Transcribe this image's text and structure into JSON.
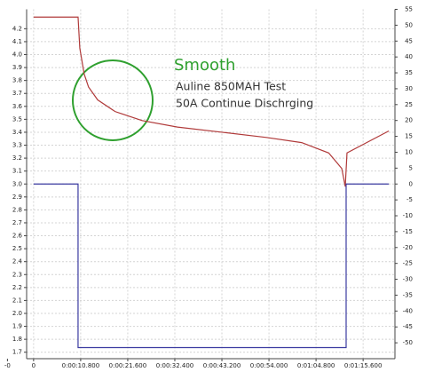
{
  "chart_data": {
    "type": "line",
    "annotations": [
      "Smooth",
      "Auline 850MAH Test",
      "50A Continue Dischrging"
    ],
    "xlim": [
      -1.6,
      82.9
    ],
    "xticks": [
      {
        "value": -6,
        "label": "-0"
      },
      0,
      {
        "value": 10.8,
        "label": "0:00:10.800"
      },
      {
        "value": 21.6,
        "label": "0:00:21.600"
      },
      {
        "value": 32.4,
        "label": "0:00:32.400"
      },
      {
        "value": 43.2,
        "label": "0:00:43.200"
      },
      {
        "value": 54,
        "label": "0:00:54.000"
      },
      {
        "value": 64.8,
        "label": "0:01:04.800"
      },
      {
        "value": 75.6,
        "label": "0:01:15.600"
      }
    ],
    "ylim": [
      1.65,
      4.35
    ],
    "yticks": [
      {
        "value": 4.2,
        "label": "4.2"
      },
      {
        "value": 4.1,
        "label": "4.1"
      },
      {
        "value": 4,
        "label": "4.0"
      },
      3.9,
      3.8,
      3.7,
      3.6,
      3.5,
      3.4,
      3.3,
      3.2,
      3.1,
      {
        "value": 3,
        "label": "3.0"
      },
      2.9,
      2.8,
      2.7,
      2.6,
      2.5,
      2.4,
      2.3,
      2.2,
      2.1,
      {
        "value": 2,
        "label": "2.0"
      },
      1.9,
      1.8,
      1.7
    ],
    "y2lim": [
      -55,
      55
    ],
    "y2ticks": [
      55,
      50,
      45,
      40,
      35,
      30,
      25,
      20,
      15,
      10,
      5,
      0,
      -5,
      -10,
      -15,
      -20,
      -25,
      -30,
      -35,
      -40,
      -45,
      -50
    ],
    "grid": true,
    "series": [
      {
        "color": "#b03a3a",
        "x": [
          0,
          10.2,
          10.6,
          11.6,
          12.6,
          14.7,
          18.7,
          24.9,
          33.0,
          43.2,
          53.4,
          61.5,
          67.7,
          70.7,
          71.5,
          71.9,
          81.5
        ],
        "values": [
          4.29,
          4.29,
          4.05,
          3.85,
          3.75,
          3.65,
          3.56,
          3.49,
          3.44,
          3.4,
          3.36,
          3.32,
          3.24,
          3.12,
          2.98,
          3.24,
          3.41
        ]
      },
      {
        "color": "#3a3aa0",
        "axis": "y2",
        "x": [
          0,
          10.2,
          10.2,
          71.7,
          71.7,
          81.5
        ],
        "values": [
          0,
          0,
          -51.5,
          -51.5,
          0,
          0
        ]
      }
    ]
  }
}
